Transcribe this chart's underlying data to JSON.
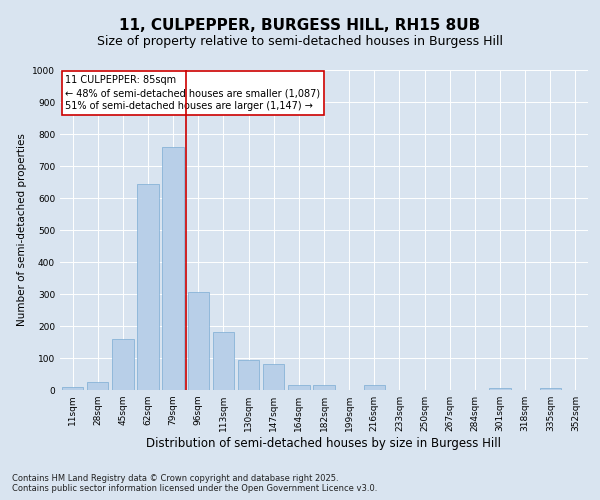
{
  "title1": "11, CULPEPPER, BURGESS HILL, RH15 8UB",
  "title2": "Size of property relative to semi-detached houses in Burgess Hill",
  "xlabel": "Distribution of semi-detached houses by size in Burgess Hill",
  "ylabel": "Number of semi-detached properties",
  "categories": [
    "11sqm",
    "28sqm",
    "45sqm",
    "62sqm",
    "79sqm",
    "96sqm",
    "113sqm",
    "130sqm",
    "147sqm",
    "164sqm",
    "182sqm",
    "199sqm",
    "216sqm",
    "233sqm",
    "250sqm",
    "267sqm",
    "284sqm",
    "301sqm",
    "318sqm",
    "335sqm",
    "352sqm"
  ],
  "values": [
    8,
    25,
    160,
    645,
    760,
    305,
    180,
    95,
    80,
    15,
    15,
    0,
    15,
    0,
    0,
    0,
    0,
    5,
    0,
    5,
    0
  ],
  "bar_color": "#b8cfe8",
  "bar_edge_color": "#7bacd4",
  "bar_width": 0.85,
  "vline_color": "#cc0000",
  "vline_x": 4.5,
  "annotation_line1": "11 CULPEPPER: 85sqm",
  "annotation_line2": "← 48% of semi-detached houses are smaller (1,087)",
  "annotation_line3": "51% of semi-detached houses are larger (1,147) →",
  "annotation_box_color": "#ffffff",
  "annotation_box_edge": "#cc0000",
  "ylim": [
    0,
    1000
  ],
  "yticks": [
    0,
    100,
    200,
    300,
    400,
    500,
    600,
    700,
    800,
    900,
    1000
  ],
  "background_color": "#d9e4f0",
  "plot_bg_color": "#d9e4f0",
  "grid_color": "#ffffff",
  "footer1": "Contains HM Land Registry data © Crown copyright and database right 2025.",
  "footer2": "Contains public sector information licensed under the Open Government Licence v3.0.",
  "title1_fontsize": 11,
  "title2_fontsize": 9,
  "xlabel_fontsize": 8.5,
  "ylabel_fontsize": 7.5,
  "tick_fontsize": 6.5,
  "footer_fontsize": 6,
  "annotation_fontsize": 7
}
